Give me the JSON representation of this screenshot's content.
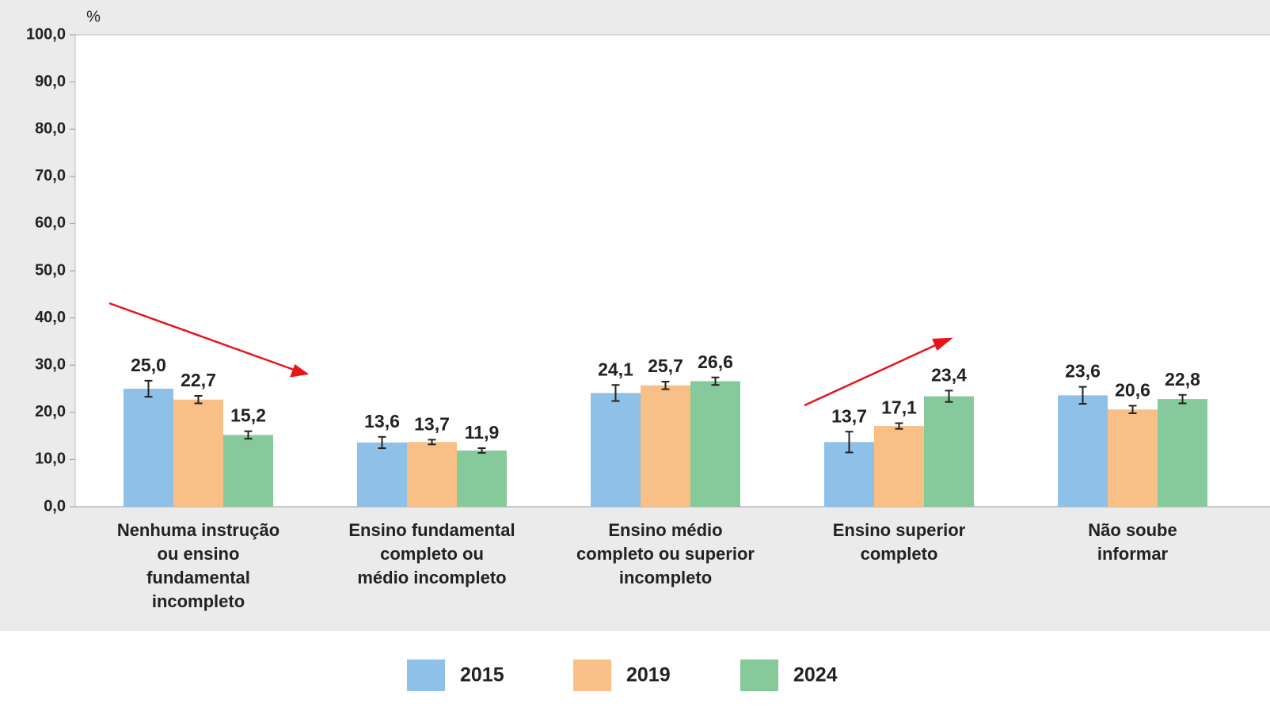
{
  "chart_data": {
    "type": "bar",
    "y_axis_label": "%",
    "categories": [
      [
        "Nenhuma instrução",
        "ou ensino",
        "fundamental",
        "incompleto"
      ],
      [
        "Ensino fundamental",
        "completo ou",
        "médio incompleto"
      ],
      [
        "Ensino médio",
        "completo ou superior",
        "incompleto"
      ],
      [
        "Ensino superior",
        "completo"
      ],
      [
        "Não soube",
        "informar"
      ]
    ],
    "series": [
      {
        "name": "2015",
        "color": "#8fc0e8",
        "values": [
          25.0,
          13.6,
          24.1,
          13.7,
          23.6
        ],
        "value_labels": [
          "25,0",
          "13,6",
          "24,1",
          "13,7",
          "23,6"
        ],
        "errors": [
          1.7,
          1.2,
          1.7,
          2.2,
          1.8
        ]
      },
      {
        "name": "2019",
        "color": "#f8bf86",
        "values": [
          22.7,
          13.7,
          25.7,
          17.1,
          20.6
        ],
        "value_labels": [
          "22,7",
          "13,7",
          "25,7",
          "17,1",
          "20,6"
        ],
        "errors": [
          0.8,
          0.5,
          0.8,
          0.6,
          0.8
        ]
      },
      {
        "name": "2024",
        "color": "#86c99a",
        "values": [
          15.2,
          11.9,
          26.6,
          23.4,
          22.8
        ],
        "value_labels": [
          "15,2",
          "11,9",
          "26,6",
          "23,4",
          "22,8"
        ],
        "errors": [
          0.8,
          0.5,
          0.8,
          1.2,
          0.9
        ]
      }
    ],
    "ylim": [
      0,
      100
    ],
    "yticks": [
      {
        "value": 0,
        "label": "0,0"
      },
      {
        "value": 10,
        "label": "10,0"
      },
      {
        "value": 20,
        "label": "20,0"
      },
      {
        "value": 30,
        "label": "30,0"
      },
      {
        "value": 40,
        "label": "40,0"
      },
      {
        "value": 50,
        "label": "50,0"
      },
      {
        "value": 60,
        "label": "60,0"
      },
      {
        "value": 70,
        "label": "70,0"
      },
      {
        "value": 80,
        "label": "80,0"
      },
      {
        "value": 90,
        "label": "90,0"
      },
      {
        "value": 100,
        "label": "100,0"
      }
    ],
    "legend": "bottom"
  }
}
